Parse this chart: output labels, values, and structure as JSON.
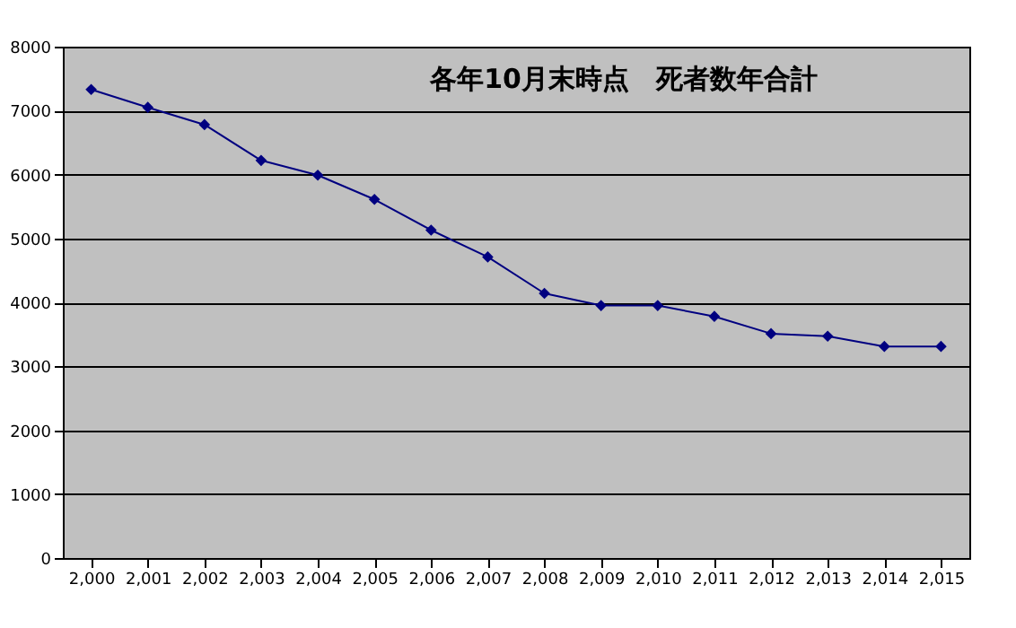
{
  "chart_data": {
    "type": "line",
    "title": "各年10月末時点　死者数年合計",
    "categories": [
      "2,000",
      "2,001",
      "2,002",
      "2,003",
      "2,004",
      "2,005",
      "2,006",
      "2,007",
      "2,008",
      "2,009",
      "2,010",
      "2,011",
      "2,012",
      "2,013",
      "2,014",
      "2,015"
    ],
    "series": [
      {
        "color": "#000080",
        "values": [
          7330,
          7050,
          6780,
          6220,
          5990,
          5610,
          5130,
          4710,
          4140,
          3950,
          3950,
          3780,
          3510,
          3470,
          3310,
          3310
        ]
      }
    ],
    "ylim": [
      0,
      8000
    ],
    "yticks": [
      0,
      1000,
      2000,
      3000,
      4000,
      5000,
      6000,
      7000,
      8000
    ],
    "grid": "y",
    "marker": "diamond"
  }
}
